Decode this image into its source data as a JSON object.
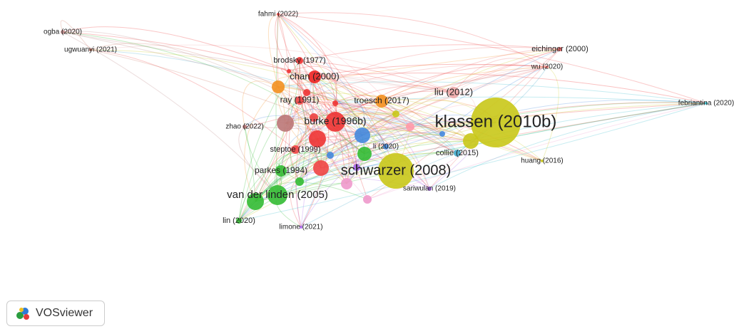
{
  "nodes": [
    {
      "label": "fahmi (2022)"
    },
    {
      "label": "ogba (2020)"
    },
    {
      "label": "ugwuanyi (2021)"
    },
    {
      "label": "brodsky (1977)"
    },
    {
      "label": "eichinger (2000)"
    },
    {
      "label": "wu (2020)"
    },
    {
      "label": "chan (2000)"
    },
    {
      "label": "liu (2012)"
    },
    {
      "label": "ray (1991)"
    },
    {
      "label": "troesch (2017)"
    },
    {
      "label": "febriantina (2020)"
    },
    {
      "label": "klassen (2010b)"
    },
    {
      "label": "zhao (2022)"
    },
    {
      "label": "burke (1996b)"
    },
    {
      "label": "li (2020)"
    },
    {
      "label": "steptoe (1999)"
    },
    {
      "label": "collie (2015)"
    },
    {
      "label": "huang (2016)"
    },
    {
      "label": "schwarzer (2008)"
    },
    {
      "label": "parkes (1994)"
    },
    {
      "label": "sariwulan (2019)"
    },
    {
      "label": "van der linden (2005)"
    },
    {
      "label": "lin (2020)"
    },
    {
      "label": "limone (2021)"
    }
  ],
  "logo": {
    "text": "VOSviewer"
  }
}
